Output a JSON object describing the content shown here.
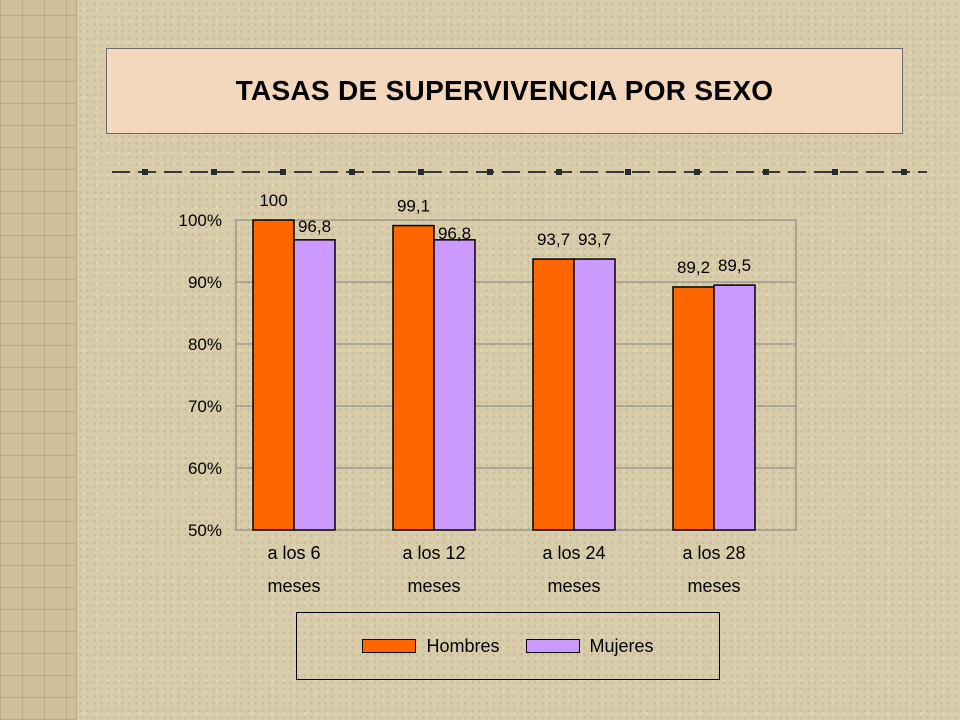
{
  "title": "TASAS DE SUPERVIVENCIA POR SEXO",
  "chart_data": {
    "type": "bar",
    "categories": [
      [
        "a los 6",
        "meses"
      ],
      [
        "a los 12",
        "meses"
      ],
      [
        "a los 24",
        "meses"
      ],
      [
        "a los 28",
        "meses"
      ]
    ],
    "series": [
      {
        "name": "Hombres",
        "values": [
          100,
          99.1,
          93.7,
          89.2
        ],
        "labels": [
          "100",
          "99,1",
          "93,7",
          "89,2"
        ],
        "color": "#ff6600"
      },
      {
        "name": "Mujeres",
        "values": [
          96.8,
          96.8,
          93.7,
          89.5
        ],
        "labels": [
          "96,8",
          "96,8",
          "93,7",
          "89,5"
        ],
        "color": "#cc99ff"
      }
    ],
    "ylim": [
      50,
      100
    ],
    "yticks": [
      50,
      60,
      70,
      80,
      90,
      100
    ],
    "ytick_labels": [
      "50%",
      "60%",
      "70%",
      "80%",
      "90%",
      "100%"
    ],
    "grid": true,
    "legend_position": "bottom",
    "xlabel": "",
    "ylabel": ""
  }
}
